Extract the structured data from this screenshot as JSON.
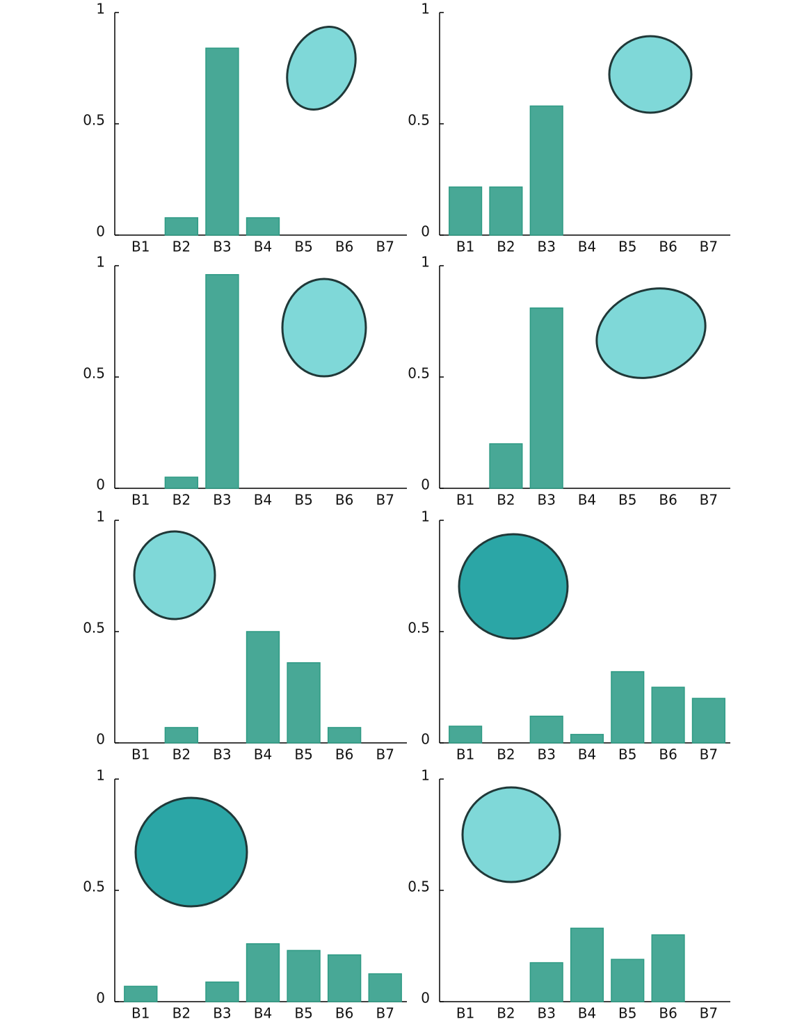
{
  "chart_data": [
    {
      "type": "bar",
      "categories": [
        "B1",
        "B2",
        "B3",
        "B4",
        "B5",
        "B6",
        "B7"
      ],
      "values": [
        0,
        0.078,
        0.84,
        0.078,
        0,
        0,
        0
      ],
      "color": "#48a896",
      "ylim": [
        0,
        1
      ],
      "yticks": [
        0,
        0.5,
        1
      ]
    },
    {
      "type": "bar",
      "categories": [
        "B1",
        "B2",
        "B3",
        "B4",
        "B5",
        "B6",
        "B7"
      ],
      "values": [
        0.216,
        0.216,
        0.58,
        0,
        0,
        0,
        0
      ],
      "color": "#48a896",
      "ylim": [
        0,
        1
      ],
      "yticks": [
        0,
        0.5,
        1
      ]
    },
    {
      "type": "bar",
      "categories": [
        "B1",
        "B2",
        "B3",
        "B4",
        "B5",
        "B6",
        "B7"
      ],
      "values": [
        0,
        0.05,
        0.96,
        0,
        0,
        0,
        0
      ],
      "color": "#48a896",
      "ylim": [
        0,
        1
      ],
      "yticks": [
        0,
        0.5,
        1
      ]
    },
    {
      "type": "bar",
      "categories": [
        "B1",
        "B2",
        "B3",
        "B4",
        "B5",
        "B6",
        "B7"
      ],
      "values": [
        0,
        0.2,
        0.81,
        0,
        0,
        0,
        0
      ],
      "color": "#48a896",
      "ylim": [
        0,
        1
      ],
      "yticks": [
        0,
        0.5,
        1
      ]
    },
    {
      "type": "bar",
      "categories": [
        "B1",
        "B2",
        "B3",
        "B4",
        "B5",
        "B6",
        "B7"
      ],
      "values": [
        0,
        0.069,
        0,
        0.5,
        0.36,
        0.069,
        0
      ],
      "color": "#48a896",
      "ylim": [
        0,
        1
      ],
      "yticks": [
        0,
        0.5,
        1
      ]
    },
    {
      "type": "bar",
      "categories": [
        "B1",
        "B2",
        "B3",
        "B4",
        "B5",
        "B6",
        "B7"
      ],
      "values": [
        0.075,
        0,
        0.12,
        0.038,
        0.32,
        0.25,
        0.2
      ],
      "color": "#48a896",
      "ylim": [
        0,
        1
      ],
      "yticks": [
        0,
        0.5,
        1
      ]
    },
    {
      "type": "bar",
      "categories": [
        "B1",
        "B2",
        "B3",
        "B4",
        "B5",
        "B6",
        "B7"
      ],
      "values": [
        0.069,
        0,
        0.088,
        0.26,
        0.23,
        0.21,
        0.125
      ],
      "color": "#48a896",
      "ylim": [
        0,
        1
      ],
      "yticks": [
        0,
        0.5,
        1
      ]
    },
    {
      "type": "bar",
      "categories": [
        "B1",
        "B2",
        "B3",
        "B4",
        "B5",
        "B6",
        "B7"
      ],
      "values": [
        0,
        0,
        0.175,
        0.33,
        0.19,
        0.3,
        0
      ],
      "color": "#48a896",
      "ylim": [
        0,
        1
      ],
      "yticks": [
        0,
        0.5,
        1
      ]
    }
  ]
}
